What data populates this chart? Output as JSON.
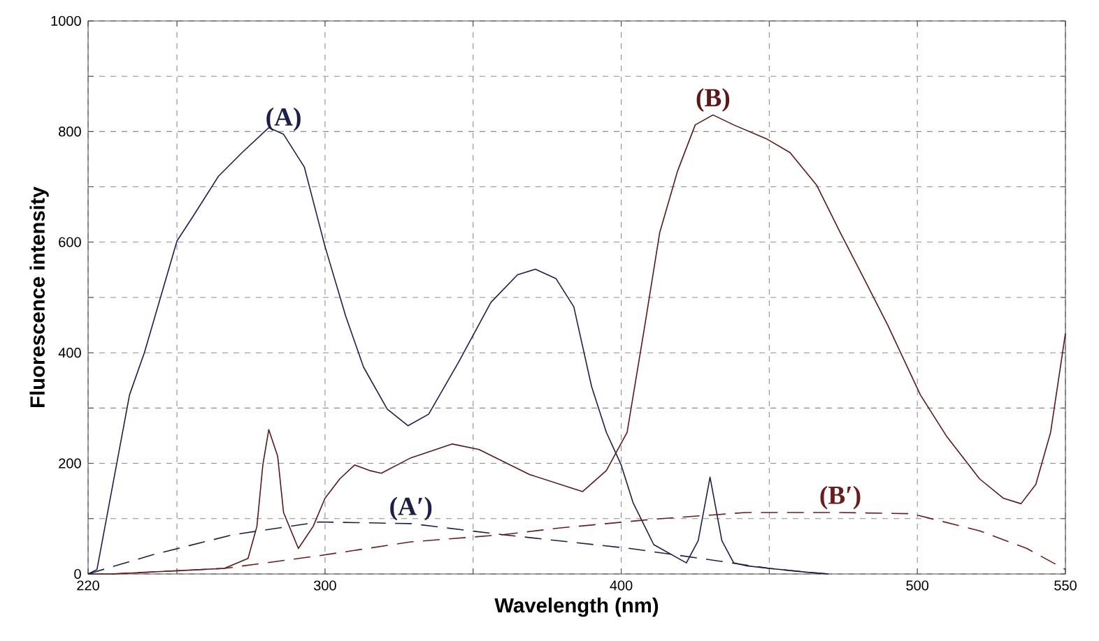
{
  "chart_data": {
    "type": "line",
    "xlabel": "Wavelength (nm)",
    "ylabel": "Fluorescence intensity",
    "xlim": [
      220,
      550
    ],
    "ylim": [
      0,
      1000
    ],
    "xticks": [
      220,
      {
        "value": 250,
        "label": null
      },
      300,
      {
        "value": 350,
        "label": null
      },
      400,
      {
        "value": 450,
        "label": null
      },
      500,
      550
    ],
    "yticks": [
      0,
      {
        "value": 100,
        "label": null
      },
      200,
      {
        "value": 300,
        "label": null
      },
      400,
      {
        "value": 500,
        "label": null
      },
      600,
      {
        "value": 700,
        "label": null
      },
      800,
      {
        "value": 900,
        "label": null
      },
      1000
    ],
    "grid": true,
    "marker": "none",
    "series": [
      {
        "name": "(A)",
        "color": "#1c1f4a",
        "line_style": "solid",
        "x": [
          220,
          223,
          234,
          239,
          250,
          255,
          264,
          272,
          281,
          286,
          293,
          300,
          307,
          313,
          321,
          328,
          335,
          345,
          356,
          365,
          371,
          378,
          384,
          390,
          395,
          400,
          404,
          411,
          422,
          426,
          430,
          434,
          438,
          442,
          450,
          463,
          470
        ],
        "values": [
          0,
          8,
          324,
          400,
          602,
          643,
          719,
          762,
          807,
          795,
          736,
          592,
          466,
          374,
          298,
          268,
          289,
          382,
          491,
          541,
          551,
          534,
          483,
          339,
          256,
          197,
          129,
          53,
          20,
          60,
          175,
          60,
          20,
          15,
          10,
          3,
          0
        ]
      },
      {
        "name": "(B)",
        "color": "#5a1818",
        "line_style": "solid",
        "x": [
          220,
          228,
          266,
          274,
          277,
          279,
          281,
          284,
          286,
          291,
          296,
          300,
          305,
          310,
          315,
          319,
          329,
          343,
          352,
          369,
          384,
          387,
          395,
          402,
          408,
          413,
          419,
          425,
          431,
          438,
          449,
          457,
          466,
          474,
          482,
          490,
          501,
          510,
          521,
          529,
          535,
          540,
          545,
          550
        ],
        "values": [
          0,
          0,
          10,
          28,
          86,
          197,
          261,
          213,
          111,
          46,
          86,
          137,
          172,
          197,
          187,
          182,
          210,
          235,
          225,
          180,
          154,
          149,
          187,
          256,
          450,
          617,
          728,
          812,
          830,
          812,
          787,
          762,
          703,
          617,
          534,
          450,
          324,
          248,
          172,
          137,
          127,
          162,
          256,
          435
        ]
      },
      {
        "name": "(A′)",
        "color": "#1c1f4a",
        "line_style": "dashed",
        "x": [
          220,
          242,
          269,
          298,
          329,
          360,
          403,
          427,
          450,
          463,
          470
        ],
        "values": [
          0,
          35,
          71,
          94,
          91,
          71,
          46,
          28,
          10,
          3,
          0
        ]
      },
      {
        "name": "(B′)",
        "color": "#6b1c1c",
        "line_style": "dashed",
        "x": [
          228,
          266,
          298,
          329,
          360,
          379,
          411,
          442,
          474,
          498,
          521,
          537,
          550
        ],
        "values": [
          0,
          10,
          33,
          58,
          71,
          83,
          99,
          111,
          111,
          109,
          78,
          46,
          8
        ]
      }
    ]
  }
}
